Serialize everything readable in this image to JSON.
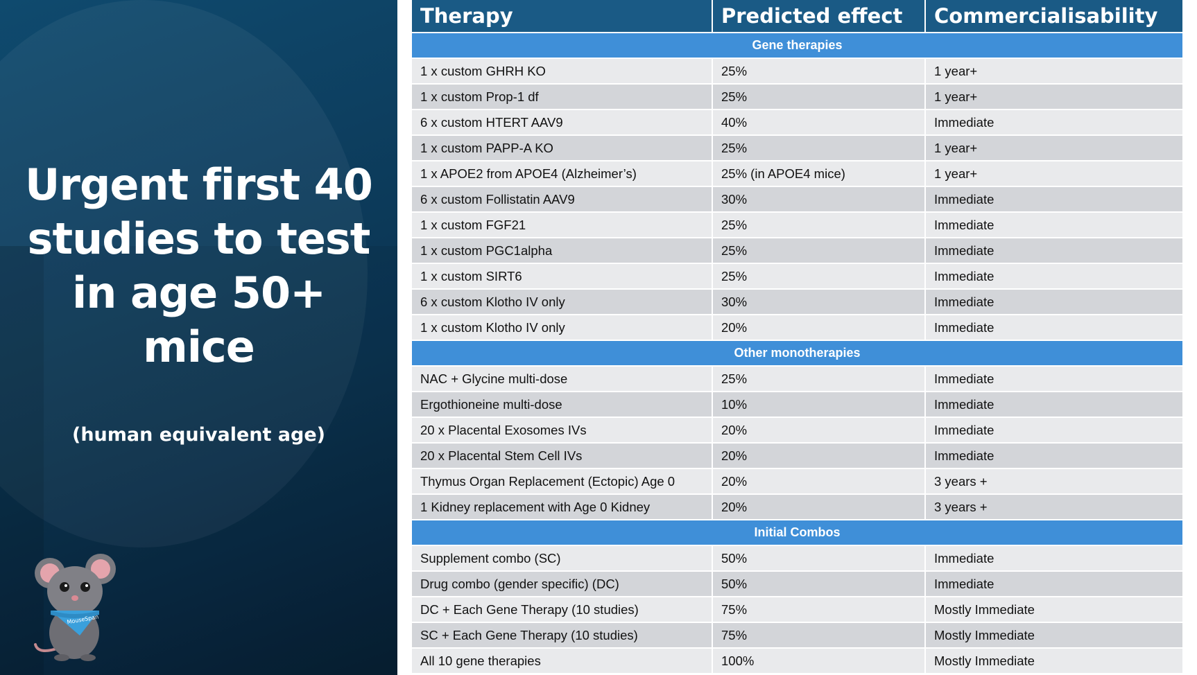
{
  "left": {
    "title_lines": [
      "Urgent first 40",
      "studies to test",
      "in age 50+",
      "mice"
    ],
    "subtitle": "(human equivalent age)",
    "mascot_bandana_text": "MouseSpan"
  },
  "table": {
    "headers": [
      "Therapy",
      "Predicted effect",
      "Commercialisability"
    ],
    "sections": [
      {
        "title": "Gene therapies",
        "rows": [
          [
            "1 x custom GHRH KO",
            "25%",
            "1 year+"
          ],
          [
            "1 x custom Prop-1 df",
            "25%",
            "1 year+"
          ],
          [
            "6 x custom HTERT AAV9",
            "40%",
            "Immediate"
          ],
          [
            "1 x custom PAPP-A KO",
            "25%",
            "1 year+"
          ],
          [
            "1 x APOE2 from APOE4 (Alzheimer’s)",
            "25% (in APOE4 mice)",
            "1 year+"
          ],
          [
            "6 x custom Follistatin AAV9",
            "30%",
            "Immediate"
          ],
          [
            "1 x custom FGF21",
            "25%",
            "Immediate"
          ],
          [
            "1 x custom PGC1alpha",
            "25%",
            "Immediate"
          ],
          [
            "1 x custom SIRT6",
            "25%",
            "Immediate"
          ],
          [
            "6 x custom Klotho IV only",
            "30%",
            "Immediate"
          ],
          [
            "1 x custom Klotho IV only",
            "20%",
            "Immediate"
          ]
        ]
      },
      {
        "title": "Other monotherapies",
        "rows": [
          [
            "NAC + Glycine multi-dose",
            "25%",
            "Immediate"
          ],
          [
            "Ergothioneine multi-dose",
            "10%",
            "Immediate"
          ],
          [
            "20 x Placental Exosomes IVs",
            "20%",
            "Immediate"
          ],
          [
            "20 x Placental Stem Cell IVs",
            "20%",
            "Immediate"
          ],
          [
            "Thymus Organ Replacement (Ectopic) Age 0",
            "20%",
            "3 years +"
          ],
          [
            "1 Kidney replacement with Age 0 Kidney",
            "20%",
            "3 years +"
          ]
        ]
      },
      {
        "title": "Initial Combos",
        "rows": [
          [
            "Supplement combo (SC)",
            "50%",
            "Immediate"
          ],
          [
            "Drug combo (gender specific) (DC)",
            "50%",
            "Immediate"
          ],
          [
            "DC + Each Gene Therapy (10 studies)",
            "75%",
            "Mostly Immediate"
          ],
          [
            "SC + Each Gene Therapy (10 studies)",
            "75%",
            "Mostly Immediate"
          ],
          [
            "All 10 gene therapies",
            "100%",
            "Mostly Immediate"
          ]
        ]
      }
    ]
  },
  "colors": {
    "left_bg": "#0d3f60",
    "header_bg": "#1a5a85",
    "section_bg": "#3f8fd8",
    "row_light": "#e9eaec",
    "row_dark": "#d3d5d9",
    "mascot_bandana": "#3aa0dc"
  }
}
